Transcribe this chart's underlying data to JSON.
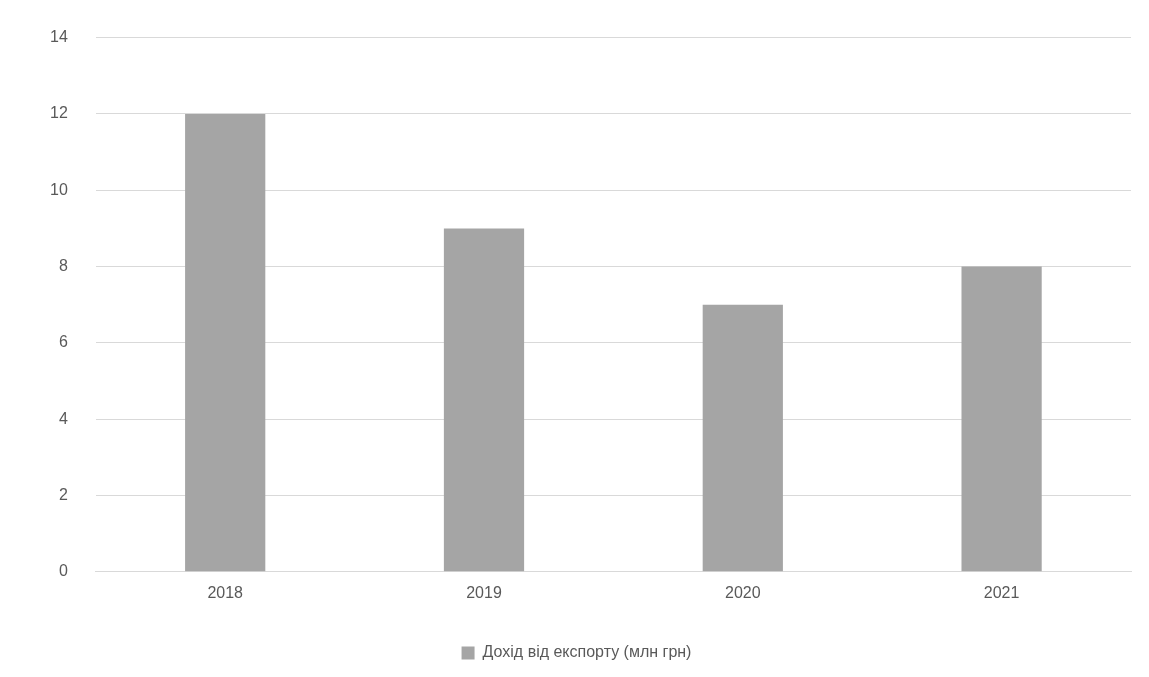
{
  "chart_data": {
    "type": "bar",
    "categories": [
      "2018",
      "2019",
      "2020",
      "2021"
    ],
    "series": [
      {
        "name": "Дохід від експорту (млн грн)",
        "color": "#a5a5a5",
        "values": [
          12,
          9,
          7,
          8
        ]
      }
    ],
    "ylim": [
      0,
      14
    ],
    "yticks": [
      0,
      2,
      4,
      6,
      8,
      10,
      12,
      14
    ],
    "grid": "y",
    "legend": "bottom"
  }
}
